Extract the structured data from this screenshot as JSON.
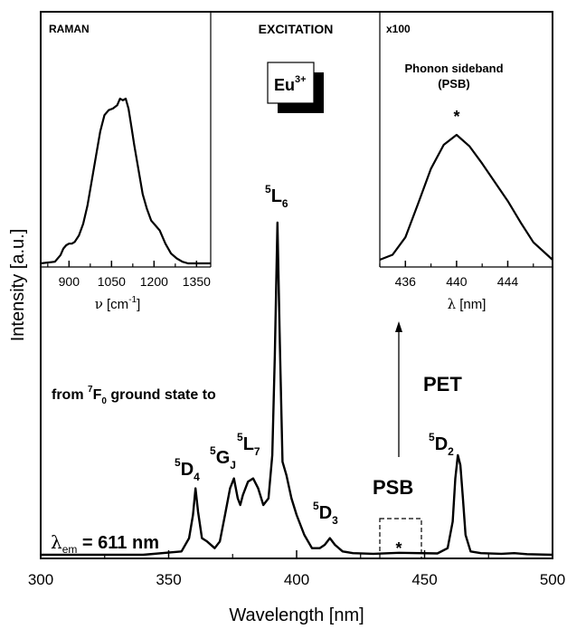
{
  "chart_data": [
    {
      "type": "line",
      "panel": "main",
      "title": "EXCITATION",
      "xlabel": "Wavelength [nm]",
      "ylabel": "Intensity [a.u.]",
      "xlim": [
        300,
        500
      ],
      "x_ticks": [
        "300",
        "350",
        "400",
        "450",
        "500"
      ],
      "series": [
        {
          "x": [
            300,
            340,
            355,
            358,
            359.5,
            360.5,
            361.5,
            363,
            365,
            368,
            370,
            372,
            374,
            375.5,
            377,
            378,
            379,
            381,
            383,
            385,
            387,
            389,
            390.5,
            391.5,
            392.5,
            393.5,
            394.5,
            396,
            398,
            400,
            403,
            406,
            409,
            411,
            413,
            415,
            418,
            422,
            430,
            440,
            455,
            459,
            461,
            462,
            463,
            464,
            465,
            466,
            468,
            472,
            480,
            485,
            490,
            500
          ],
          "y": [
            0,
            0,
            0.01,
            0.05,
            0.12,
            0.2,
            0.13,
            0.05,
            0.04,
            0.02,
            0.04,
            0.12,
            0.2,
            0.23,
            0.17,
            0.15,
            0.18,
            0.22,
            0.23,
            0.2,
            0.15,
            0.17,
            0.3,
            0.6,
            1.0,
            0.62,
            0.28,
            0.24,
            0.17,
            0.12,
            0.06,
            0.02,
            0.02,
            0.03,
            0.05,
            0.03,
            0.01,
            0.005,
            0.003,
            0.006,
            0.004,
            0.02,
            0.1,
            0.23,
            0.3,
            0.27,
            0.17,
            0.06,
            0.01,
            0.005,
            0.003,
            0.005,
            0.002,
            0
          ]
        }
      ],
      "peak_labels": [
        {
          "sup": "5",
          "main": "D",
          "sub": "4"
        },
        {
          "sup": "5",
          "main": "G",
          "sub": "J"
        },
        {
          "sup": "5",
          "main": "L",
          "sub": "7"
        },
        {
          "sup": "5",
          "main": "L",
          "sub": "6"
        },
        {
          "sup": "5",
          "main": "D",
          "sub": "3"
        },
        {
          "sup": "5",
          "main": "D",
          "sub": "2"
        }
      ],
      "annotations": {
        "from_text_a": "from ",
        "from_sup": "7",
        "from_main": "F",
        "from_sub": "0",
        "from_text_b": " ground state to",
        "lambda_sym": "λ",
        "lambda_sub": "em",
        "lambda_value": " = 611 nm",
        "psb": "PSB",
        "pet": "PET",
        "star": "*",
        "eu_main": "Eu",
        "eu_sup": "3+"
      }
    },
    {
      "type": "line",
      "panel": "raman-inset",
      "title": "RAMAN",
      "xlabel_sym": "ν",
      "xlabel_a": " [cm",
      "xlabel_sup": "-1",
      "xlabel_b": "]",
      "xlim": [
        800,
        1400
      ],
      "x_ticks": [
        "900",
        "1050",
        "1200",
        "1350"
      ],
      "series": [
        {
          "x": [
            800,
            850,
            870,
            880,
            890,
            900,
            910,
            920,
            935,
            950,
            965,
            980,
            995,
            1010,
            1025,
            1040,
            1055,
            1070,
            1080,
            1090,
            1100,
            1110,
            1120,
            1130,
            1145,
            1160,
            1175,
            1190,
            1205,
            1220,
            1240,
            1260,
            1280,
            1300,
            1320,
            1340,
            1360,
            1380,
            1400
          ],
          "y": [
            0,
            0.01,
            0.05,
            0.09,
            0.11,
            0.12,
            0.12,
            0.13,
            0.17,
            0.24,
            0.35,
            0.5,
            0.65,
            0.8,
            0.9,
            0.93,
            0.94,
            0.96,
            1.0,
            0.99,
            1.0,
            0.94,
            0.83,
            0.72,
            0.57,
            0.42,
            0.33,
            0.26,
            0.23,
            0.2,
            0.12,
            0.06,
            0.03,
            0.01,
            0,
            0,
            0,
            0,
            0
          ]
        }
      ]
    },
    {
      "type": "line",
      "panel": "psb-inset",
      "title": "x100",
      "subtitle_line1": "Phonon sideband",
      "subtitle_line2": "(PSB)",
      "marker": "*",
      "xlabel_sym": "λ",
      "xlabel_b": " [nm]",
      "xlim": [
        434,
        447.5
      ],
      "x_ticks": [
        "436",
        "440",
        "444"
      ],
      "series": [
        {
          "x": [
            434,
            435,
            436,
            437,
            438,
            439,
            440,
            441,
            442,
            443,
            444,
            445,
            446,
            447.5
          ],
          "y": [
            0,
            0.04,
            0.18,
            0.45,
            0.73,
            0.92,
            1.0,
            0.91,
            0.77,
            0.62,
            0.47,
            0.3,
            0.14,
            0
          ]
        }
      ]
    }
  ]
}
